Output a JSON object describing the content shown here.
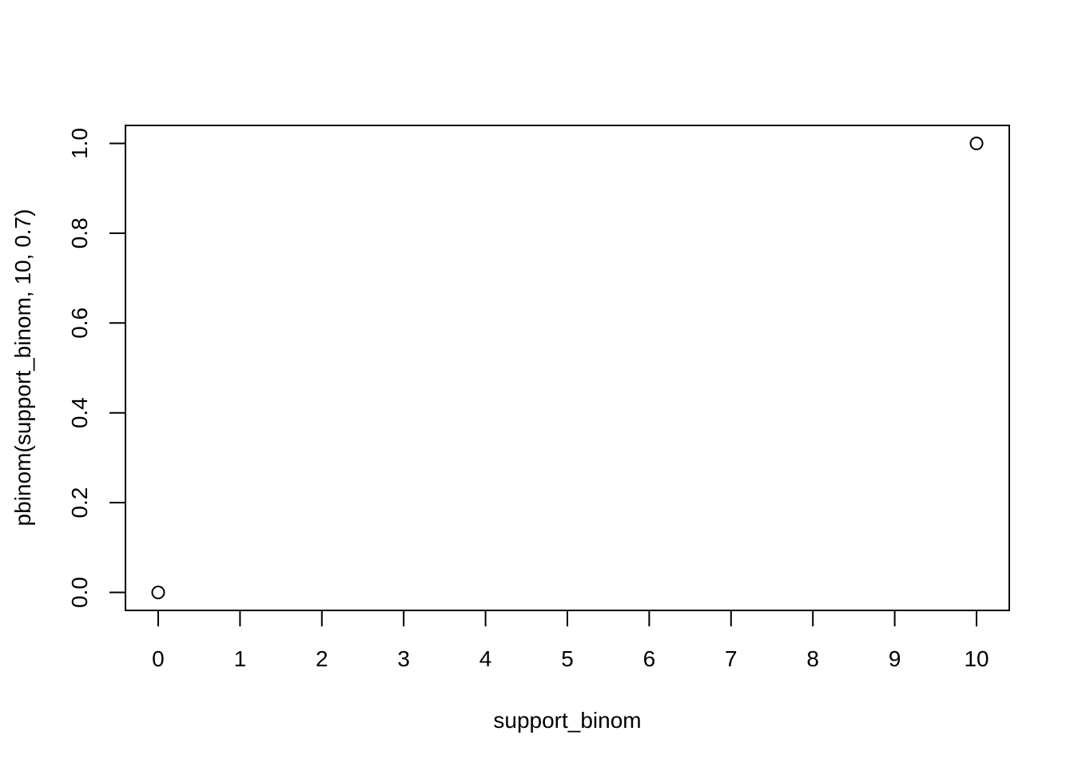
{
  "chart_data": {
    "type": "scatter",
    "title": "",
    "xlabel": "support_binom",
    "ylabel": "pbinom(support_binom, 10, 0.7)",
    "xlim": [
      -0.4,
      10.4
    ],
    "ylim": [
      -0.04,
      1.04
    ],
    "x_ticks": [
      0,
      1,
      2,
      3,
      4,
      5,
      6,
      7,
      8,
      9,
      10
    ],
    "x_tick_labels": [
      "0",
      "1",
      "2",
      "3",
      "4",
      "5",
      "6",
      "7",
      "8",
      "9",
      "10"
    ],
    "y_ticks": [
      0.0,
      0.2,
      0.4,
      0.6,
      0.8,
      1.0
    ],
    "y_tick_labels": [
      "0.0",
      "0.2",
      "0.4",
      "0.6",
      "0.8",
      "1.0"
    ],
    "grid": false,
    "marker": "open-circle",
    "point_color": "#000000",
    "series": [
      {
        "x": [
          0,
          10
        ],
        "y": [
          0.0,
          1.0
        ]
      }
    ]
  }
}
